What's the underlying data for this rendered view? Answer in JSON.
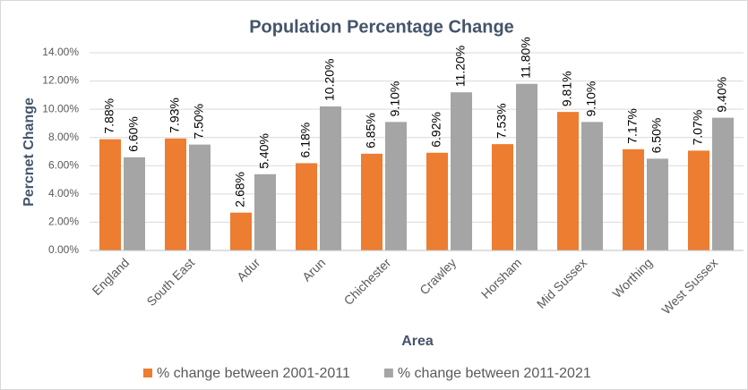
{
  "chart_data": {
    "type": "bar",
    "title": "Population Percentage Change",
    "x_label": "Area",
    "y_label": "Percnet Change",
    "categories": [
      "England",
      "South East",
      "Adur",
      "Arun",
      "Chichester",
      "Crawley",
      "Horsham",
      "Mid Sussex",
      "Worthing",
      "West Sussex"
    ],
    "series": [
      {
        "name": "% change between 2001-2011",
        "color": "#ed7d31",
        "values": [
          7.88,
          7.93,
          2.68,
          6.18,
          6.85,
          6.92,
          7.53,
          9.81,
          7.17,
          7.07
        ],
        "value_labels": [
          "7.88%",
          "7.93%",
          "2.68%",
          "6.18%",
          "6.85%",
          "6.92%",
          "7.53%",
          "9.81%",
          "7.17%",
          "7.07%"
        ]
      },
      {
        "name": "% change between 2011-2021",
        "color": "#a5a5a5",
        "values": [
          6.6,
          7.5,
          5.4,
          10.2,
          9.1,
          11.2,
          11.8,
          9.1,
          6.5,
          9.4
        ],
        "value_labels": [
          "6.60%",
          "7.50%",
          "5.40%",
          "10.20%",
          "9.10%",
          "11.20%",
          "11.80%",
          "9.10%",
          "6.50%",
          "9.40%"
        ]
      }
    ],
    "ylim": [
      0,
      14
    ],
    "yticks": [
      {
        "value": 0,
        "label": "0.00%"
      },
      {
        "value": 2,
        "label": "2.00%"
      },
      {
        "value": 4,
        "label": "4.00%"
      },
      {
        "value": 6,
        "label": "6.00%"
      },
      {
        "value": 8,
        "label": "8.00%"
      },
      {
        "value": 10,
        "label": "10.00%"
      },
      {
        "value": 12,
        "label": "12.00%"
      },
      {
        "value": 14,
        "label": "14.00%"
      }
    ],
    "grid": true,
    "legend": "bottom"
  }
}
